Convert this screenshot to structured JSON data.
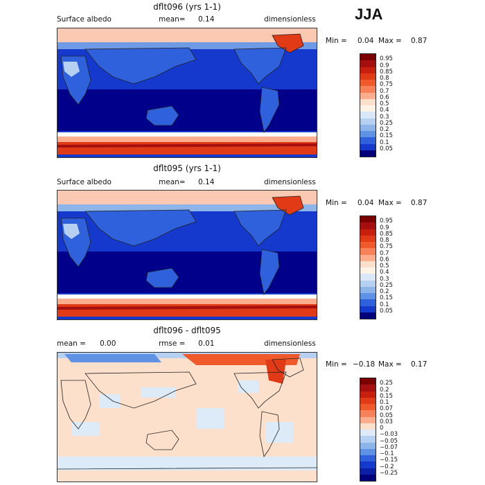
{
  "season": "JJA",
  "panels": [
    {
      "title": "dflt096 (yrs 1-1)",
      "left_label": "Surface albedo",
      "mean_label": "mean=",
      "mean_value": "0.14",
      "units": "dimensionless",
      "min_label": "Min =",
      "min_value": "0.04",
      "max_label": "Max =",
      "max_value": "0.87",
      "colorbar": {
        "labels": [
          "0.95",
          "0.9",
          "0.85",
          "0.8",
          "0.75",
          "0.7",
          "0.6",
          "0.5",
          "0.4",
          "0.3",
          "0.25",
          "0.2",
          "0.15",
          "0.1",
          "0.05"
        ],
        "colors": [
          "#7a0000",
          "#a50f0f",
          "#c81e0e",
          "#e03a16",
          "#f05a2a",
          "#f7825a",
          "#fbad8e",
          "#fde0cc",
          "#fff3e6",
          "#d9e8f7",
          "#b5d0f0",
          "#8eb5ea",
          "#5f92e5",
          "#2f61dd",
          "#1439cc",
          "#00007a"
        ]
      }
    },
    {
      "title": "dflt095 (yrs 1-1)",
      "left_label": "Surface albedo",
      "mean_label": "mean=",
      "mean_value": "0.14",
      "units": "dimensionless",
      "min_label": "Min =",
      "min_value": "0.04",
      "max_label": "Max =",
      "max_value": "0.87",
      "colorbar": {
        "labels": [
          "0.95",
          "0.9",
          "0.85",
          "0.8",
          "0.75",
          "0.7",
          "0.6",
          "0.5",
          "0.4",
          "0.3",
          "0.25",
          "0.2",
          "0.15",
          "0.1",
          "0.05"
        ],
        "colors": [
          "#7a0000",
          "#a50f0f",
          "#c81e0e",
          "#e03a16",
          "#f05a2a",
          "#f7825a",
          "#fbad8e",
          "#fde0cc",
          "#fff3e6",
          "#d9e8f7",
          "#b5d0f0",
          "#8eb5ea",
          "#5f92e5",
          "#2f61dd",
          "#1439cc",
          "#00007a"
        ]
      }
    },
    {
      "title": "dflt096 - dflt095",
      "left_label": "mean =",
      "left_value": "0.00",
      "rmse_label": "rmse =",
      "rmse_value": "0.01",
      "units": "dimensionless",
      "min_label": "Min =",
      "min_value": "−0.18",
      "max_label": "Max =",
      "max_value": "0.17",
      "colorbar": {
        "labels": [
          "0.25",
          "0.2",
          "0.15",
          "0.1",
          "0.07",
          "0.05",
          "0.03",
          "0",
          "−0.03",
          "−0.05",
          "−0.07",
          "−0.1",
          "−0.15",
          "−0.2",
          "−0.25"
        ],
        "colors": [
          "#7a0000",
          "#a50f0f",
          "#c81e0e",
          "#e03a16",
          "#f05a2a",
          "#f7825a",
          "#fbad8e",
          "#fde0cc",
          "#ddeaf8",
          "#b5d0f0",
          "#8eb5ea",
          "#5f92e5",
          "#2f61dd",
          "#1439cc",
          "#0a1fa6",
          "#00007a"
        ]
      }
    }
  ]
}
